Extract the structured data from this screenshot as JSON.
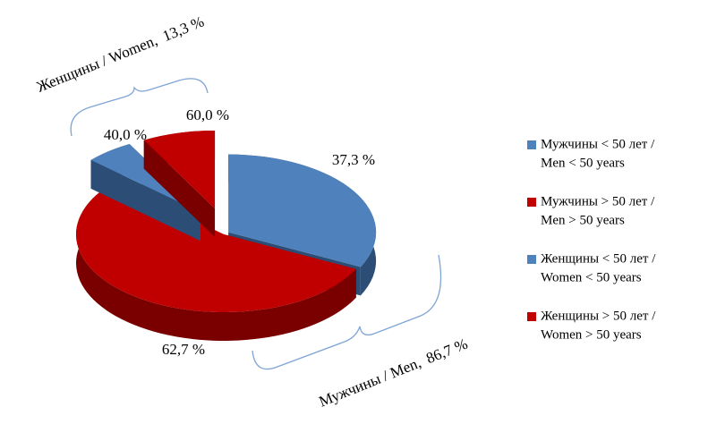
{
  "chart_data": {
    "type": "pie3d",
    "legend": "right",
    "groups": [
      {
        "name": "Мужчины / Men,",
        "value": 86.7,
        "value_label": "86,7 %",
        "slices": [
          {
            "name": [
              "Мужчины  < 50 лет /",
              "Men < 50 years"
            ],
            "value": 37.3,
            "value_label": "37,3 %",
            "color": "#4f81bd",
            "side_color": "#2c4d75"
          },
          {
            "name": [
              "Мужчины  > 50 лет /",
              "Men > 50 years"
            ],
            "value": 62.7,
            "value_label": "62,7 %",
            "color": "#c00000",
            "side_color": "#7a0000"
          }
        ]
      },
      {
        "name": "Женщины  / Women,",
        "value": 13.3,
        "value_label": "13,3 %",
        "slices": [
          {
            "name": [
              "Женщины  < 50 лет /",
              "Women < 50 years"
            ],
            "value": 40.0,
            "value_label": "40,0 %",
            "color": "#4f81bd",
            "side_color": "#2c4d75"
          },
          {
            "name": [
              "Женщины  > 50 лет /",
              "Women > 50 years"
            ],
            "value": 60.0,
            "value_label": "60,0 %",
            "color": "#c00000",
            "side_color": "#7a0000"
          }
        ]
      }
    ]
  }
}
